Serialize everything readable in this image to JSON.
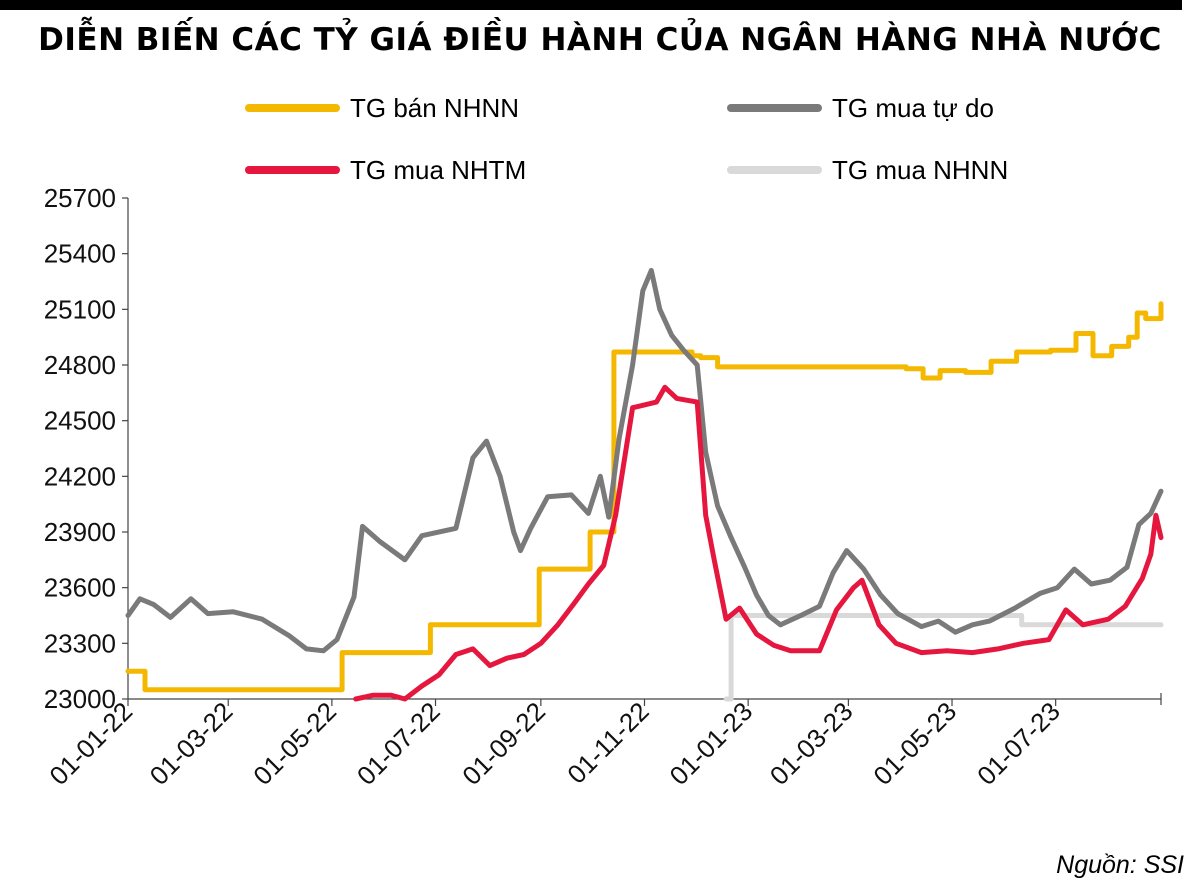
{
  "chart_data": {
    "type": "line",
    "title": "DIỄN BIẾN CÁC TỶ GIÁ ĐIỀU HÀNH CỦA NGÂN HÀNG NHÀ NƯỚC",
    "xlabel": "",
    "ylabel": "",
    "ylim": [
      23000,
      25700
    ],
    "yticks": [
      23000,
      23300,
      23600,
      23900,
      24200,
      24500,
      24800,
      25100,
      25400,
      25700
    ],
    "xlim": [
      "2022-01-01",
      "2023-09-01"
    ],
    "xticks": [
      {
        "label": "01-01-22",
        "date": "2022-01-01"
      },
      {
        "label": "01-03-22",
        "date": "2022-03-01"
      },
      {
        "label": "01-05-22",
        "date": "2022-05-01"
      },
      {
        "label": "01-07-22",
        "date": "2022-07-01"
      },
      {
        "label": "01-09-22",
        "date": "2022-09-01"
      },
      {
        "label": "01-11-22",
        "date": "2022-11-01"
      },
      {
        "label": "01-01-23",
        "date": "2023-01-01"
      },
      {
        "label": "01-03-23",
        "date": "2023-03-01"
      },
      {
        "label": "01-05-23",
        "date": "2023-05-01"
      },
      {
        "label": "01-07-23",
        "date": "2023-07-01"
      }
    ],
    "grid": false,
    "legend_position": "top",
    "series": [
      {
        "name": "TG bán NHNN",
        "color": "#F5B800",
        "step": true,
        "points": [
          [
            "2022-01-01",
            23150
          ],
          [
            "2022-01-11",
            23050
          ],
          [
            "2022-05-07",
            23250
          ],
          [
            "2022-06-28",
            23400
          ],
          [
            "2022-08-31",
            23700
          ],
          [
            "2022-09-30",
            23900
          ],
          [
            "2022-10-14",
            24870
          ],
          [
            "2022-11-29",
            24850
          ],
          [
            "2022-12-04",
            24840
          ],
          [
            "2022-12-14",
            24790
          ],
          [
            "2023-04-04",
            24780
          ],
          [
            "2023-04-14",
            24730
          ],
          [
            "2023-04-24",
            24770
          ],
          [
            "2023-05-09",
            24760
          ],
          [
            "2023-05-24",
            24820
          ],
          [
            "2023-06-08",
            24870
          ],
          [
            "2023-06-28",
            24880
          ],
          [
            "2023-07-13",
            24970
          ],
          [
            "2023-07-23",
            24850
          ],
          [
            "2023-08-03",
            24900
          ],
          [
            "2023-08-13",
            24950
          ],
          [
            "2023-08-18",
            25080
          ],
          [
            "2023-08-23",
            25050
          ],
          [
            "2023-09-01",
            25130
          ]
        ]
      },
      {
        "name": "TG mua tự do",
        "color": "#7A7A7A",
        "step": false,
        "points": [
          [
            "2022-01-01",
            23450
          ],
          [
            "2022-01-08",
            23540
          ],
          [
            "2022-01-16",
            23510
          ],
          [
            "2022-01-26",
            23440
          ],
          [
            "2022-02-07",
            23540
          ],
          [
            "2022-02-17",
            23460
          ],
          [
            "2022-03-04",
            23470
          ],
          [
            "2022-03-21",
            23430
          ],
          [
            "2022-04-06",
            23340
          ],
          [
            "2022-04-16",
            23270
          ],
          [
            "2022-04-26",
            23260
          ],
          [
            "2022-05-04",
            23320
          ],
          [
            "2022-05-14",
            23550
          ],
          [
            "2022-05-19",
            23930
          ],
          [
            "2022-05-29",
            23850
          ],
          [
            "2022-06-13",
            23750
          ],
          [
            "2022-06-23",
            23880
          ],
          [
            "2022-07-13",
            23920
          ],
          [
            "2022-07-23",
            24300
          ],
          [
            "2022-07-31",
            24390
          ],
          [
            "2022-08-08",
            24200
          ],
          [
            "2022-08-16",
            23900
          ],
          [
            "2022-08-20",
            23800
          ],
          [
            "2022-08-26",
            23920
          ],
          [
            "2022-09-05",
            24090
          ],
          [
            "2022-09-19",
            24100
          ],
          [
            "2022-09-29",
            24000
          ],
          [
            "2022-10-06",
            24200
          ],
          [
            "2022-10-11",
            23980
          ],
          [
            "2022-10-17",
            24400
          ],
          [
            "2022-10-25",
            24800
          ],
          [
            "2022-10-31",
            25200
          ],
          [
            "2022-11-05",
            25310
          ],
          [
            "2022-11-10",
            25100
          ],
          [
            "2022-11-17",
            24960
          ],
          [
            "2022-11-24",
            24880
          ],
          [
            "2022-12-02",
            24800
          ],
          [
            "2022-12-07",
            24330
          ],
          [
            "2022-12-14",
            24040
          ],
          [
            "2022-12-22",
            23870
          ],
          [
            "2022-12-30",
            23710
          ],
          [
            "2023-01-06",
            23560
          ],
          [
            "2023-01-13",
            23450
          ],
          [
            "2023-01-20",
            23400
          ],
          [
            "2023-02-01",
            23450
          ],
          [
            "2023-02-12",
            23500
          ],
          [
            "2023-02-20",
            23680
          ],
          [
            "2023-02-28",
            23800
          ],
          [
            "2023-03-10",
            23700
          ],
          [
            "2023-03-20",
            23560
          ],
          [
            "2023-03-30",
            23460
          ],
          [
            "2023-04-13",
            23390
          ],
          [
            "2023-04-23",
            23420
          ],
          [
            "2023-05-03",
            23360
          ],
          [
            "2023-05-13",
            23400
          ],
          [
            "2023-05-23",
            23420
          ],
          [
            "2023-06-07",
            23490
          ],
          [
            "2023-06-22",
            23570
          ],
          [
            "2023-07-02",
            23600
          ],
          [
            "2023-07-12",
            23700
          ],
          [
            "2023-07-22",
            23620
          ],
          [
            "2023-08-02",
            23640
          ],
          [
            "2023-08-12",
            23710
          ],
          [
            "2023-08-19",
            23940
          ],
          [
            "2023-08-26",
            24000
          ],
          [
            "2023-09-01",
            24120
          ]
        ]
      },
      {
        "name": "TG mua NHTM",
        "color": "#E5173F",
        "step": false,
        "points": [
          [
            "2022-05-15",
            23000
          ],
          [
            "2022-05-25",
            23020
          ],
          [
            "2022-06-05",
            23020
          ],
          [
            "2022-06-13",
            23000
          ],
          [
            "2022-06-23",
            23070
          ],
          [
            "2022-07-03",
            23130
          ],
          [
            "2022-07-13",
            23240
          ],
          [
            "2022-07-23",
            23270
          ],
          [
            "2022-08-02",
            23180
          ],
          [
            "2022-08-12",
            23220
          ],
          [
            "2022-08-22",
            23240
          ],
          [
            "2022-09-01",
            23300
          ],
          [
            "2022-09-11",
            23400
          ],
          [
            "2022-09-21",
            23520
          ],
          [
            "2022-09-29",
            23620
          ],
          [
            "2022-10-08",
            23720
          ],
          [
            "2022-10-15",
            23990
          ],
          [
            "2022-10-25",
            24570
          ],
          [
            "2022-11-08",
            24600
          ],
          [
            "2022-11-13",
            24680
          ],
          [
            "2022-11-20",
            24620
          ],
          [
            "2022-12-02",
            24600
          ],
          [
            "2022-12-07",
            23990
          ],
          [
            "2022-12-12",
            23750
          ],
          [
            "2022-12-19",
            23430
          ],
          [
            "2022-12-27",
            23490
          ],
          [
            "2023-01-06",
            23350
          ],
          [
            "2023-01-16",
            23290
          ],
          [
            "2023-01-26",
            23260
          ],
          [
            "2023-02-12",
            23260
          ],
          [
            "2023-02-22",
            23480
          ],
          [
            "2023-03-04",
            23600
          ],
          [
            "2023-03-09",
            23640
          ],
          [
            "2023-03-19",
            23400
          ],
          [
            "2023-03-29",
            23300
          ],
          [
            "2023-04-13",
            23250
          ],
          [
            "2023-04-28",
            23260
          ],
          [
            "2023-05-13",
            23250
          ],
          [
            "2023-05-28",
            23270
          ],
          [
            "2023-06-12",
            23300
          ],
          [
            "2023-06-27",
            23320
          ],
          [
            "2023-07-07",
            23480
          ],
          [
            "2023-07-17",
            23400
          ],
          [
            "2023-08-01",
            23430
          ],
          [
            "2023-08-11",
            23500
          ],
          [
            "2023-08-21",
            23650
          ],
          [
            "2023-08-26",
            23780
          ],
          [
            "2023-08-29",
            23990
          ],
          [
            "2023-09-01",
            23870
          ]
        ]
      },
      {
        "name": "TG mua NHNN",
        "color": "#D9D9D9",
        "step": true,
        "points": [
          [
            "2022-12-19",
            23000
          ],
          [
            "2022-12-22",
            23450
          ],
          [
            "2023-06-11",
            23400
          ],
          [
            "2023-09-01",
            23400
          ]
        ]
      }
    ]
  },
  "legend": [
    {
      "label": "TG bán NHNN",
      "color": "#F5B800"
    },
    {
      "label": "TG mua tự do",
      "color": "#7A7A7A"
    },
    {
      "label": "TG mua NHTM",
      "color": "#E5173F"
    },
    {
      "label": "TG mua NHNN",
      "color": "#D9D9D9"
    }
  ],
  "source": "Nguồn: SSI"
}
